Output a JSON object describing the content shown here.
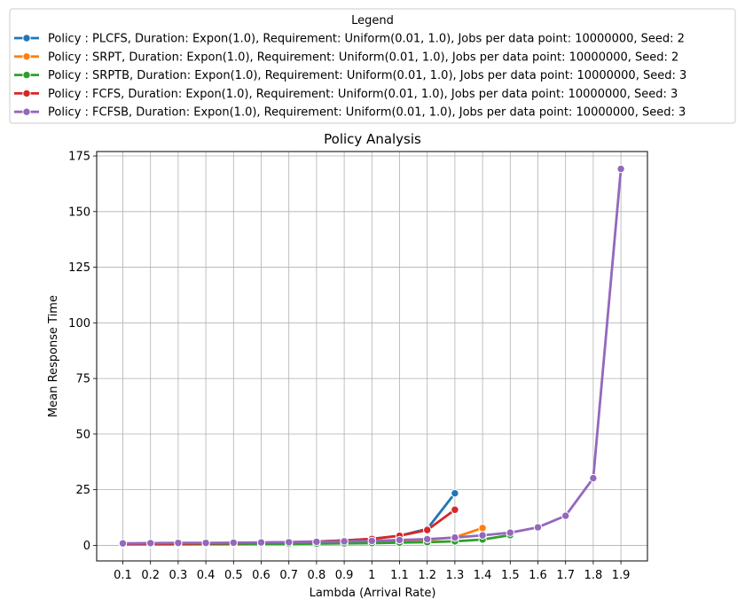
{
  "chart_data": {
    "type": "line",
    "title": "Policy Analysis",
    "xlabel": "Lambda (Arrival Rate)",
    "ylabel": "Mean Response Time",
    "x_ticks": [
      "0.1",
      "0.2",
      "0.3",
      "0.4",
      "0.5",
      "0.6",
      "0.7",
      "0.8",
      "0.9",
      "1",
      "1.1",
      "1.2",
      "1.3",
      "1.4",
      "1.5",
      "1.6",
      "1.7",
      "1.8",
      "1.9"
    ],
    "y_ticks": [
      0,
      25,
      50,
      75,
      100,
      125,
      150,
      175
    ],
    "ylim": [
      -7,
      177
    ],
    "grid": true,
    "legend": {
      "title": "Legend",
      "placement": "top, above plot"
    },
    "series": [
      {
        "name": "Policy : PLCFS, Duration: Expon(1.0), Requirement: Uniform(0.01, 1.0), Jobs per data point: 10000000, Seed: 2",
        "color": "#1f77b4",
        "x": [
          0.1,
          0.2,
          0.3,
          0.4,
          0.5,
          0.6,
          0.7,
          0.8,
          0.9,
          1.0,
          1.1,
          1.2,
          1.3
        ],
        "y": [
          0.6,
          0.7,
          0.8,
          0.9,
          1.0,
          1.2,
          1.4,
          1.7,
          2.2,
          2.9,
          4.3,
          7.4,
          23.4
        ]
      },
      {
        "name": "Policy : SRPT, Duration: Expon(1.0), Requirement: Uniform(0.01, 1.0), Jobs per data point: 10000000, Seed: 2",
        "color": "#ff7f0e",
        "x": [
          0.1,
          0.2,
          0.3,
          0.4,
          0.5,
          0.6,
          0.7,
          0.8,
          0.9,
          1.0,
          1.1,
          1.2,
          1.3,
          1.4
        ],
        "y": [
          0.5,
          0.6,
          0.7,
          0.7,
          0.8,
          0.9,
          1.0,
          1.1,
          1.3,
          1.5,
          1.8,
          2.4,
          3.6,
          7.8
        ]
      },
      {
        "name": "Policy : SRPTB, Duration: Expon(1.0), Requirement: Uniform(0.01, 1.0), Jobs per data point: 10000000, Seed: 3",
        "color": "#2ca02c",
        "x": [
          0.1,
          0.2,
          0.3,
          0.4,
          0.5,
          0.6,
          0.7,
          0.8,
          0.9,
          1.0,
          1.1,
          1.2,
          1.3,
          1.4,
          1.5
        ],
        "y": [
          0.5,
          0.5,
          0.5,
          0.6,
          0.6,
          0.7,
          0.7,
          0.8,
          0.9,
          1.0,
          1.2,
          1.4,
          1.8,
          2.6,
          4.6
        ]
      },
      {
        "name": "Policy : FCFS, Duration: Expon(1.0), Requirement: Uniform(0.01, 1.0), Jobs per data point: 10000000, Seed: 3",
        "color": "#d62728",
        "x": [
          0.1,
          0.2,
          0.3,
          0.4,
          0.5,
          0.6,
          0.7,
          0.8,
          0.9,
          1.0,
          1.1,
          1.2,
          1.3
        ],
        "y": [
          0.6,
          0.7,
          0.8,
          0.9,
          1.0,
          1.2,
          1.4,
          1.7,
          2.2,
          2.9,
          4.3,
          6.9,
          16.0
        ]
      },
      {
        "name": "Policy : FCFSB, Duration: Expon(1.0), Requirement: Uniform(0.01, 1.0), Jobs per data point: 10000000, Seed: 3",
        "color": "#9467bd",
        "x": [
          0.1,
          0.2,
          0.3,
          0.4,
          0.5,
          0.6,
          0.7,
          0.8,
          0.9,
          1.0,
          1.1,
          1.2,
          1.3,
          1.4,
          1.5,
          1.6,
          1.7,
          1.8,
          1.9
        ],
        "y": [
          0.9,
          1.0,
          1.1,
          1.1,
          1.2,
          1.3,
          1.4,
          1.6,
          1.8,
          2.0,
          2.4,
          2.8,
          3.5,
          4.5,
          5.7,
          8.1,
          13.3,
          30.2,
          169.2
        ]
      }
    ]
  }
}
